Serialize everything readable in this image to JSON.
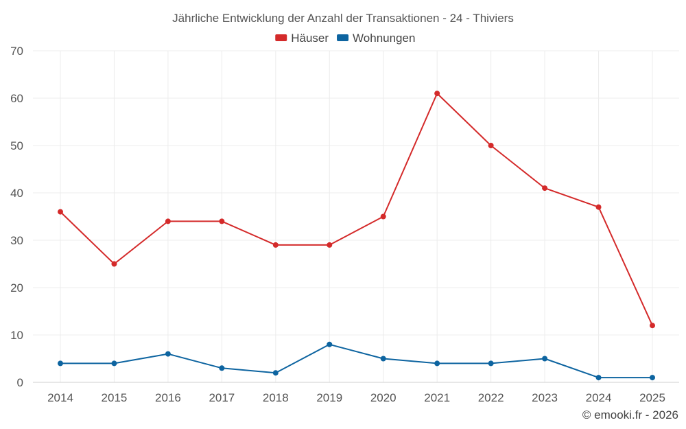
{
  "chart_data": {
    "type": "line",
    "title": "Jährliche Entwicklung der Anzahl der Transaktionen - 24 - Thiviers",
    "categories": [
      "2014",
      "2015",
      "2016",
      "2017",
      "2018",
      "2019",
      "2020",
      "2021",
      "2022",
      "2023",
      "2024",
      "2025"
    ],
    "ylim": [
      0,
      70
    ],
    "yticks": [
      0,
      10,
      20,
      30,
      40,
      50,
      60,
      70
    ],
    "grid": true,
    "legend_position": "top-center",
    "xlabel": "",
    "ylabel": "",
    "series": [
      {
        "name": "Häuser",
        "color": "#d42a2a",
        "values": [
          36,
          25,
          34,
          34,
          29,
          29,
          35,
          61,
          50,
          41,
          37,
          12
        ]
      },
      {
        "name": "Wohnungen",
        "color": "#0d64a0",
        "values": [
          4,
          4,
          6,
          3,
          2,
          8,
          5,
          4,
          4,
          5,
          1,
          1
        ]
      }
    ],
    "credit": "© emooki.fr - 2026"
  }
}
